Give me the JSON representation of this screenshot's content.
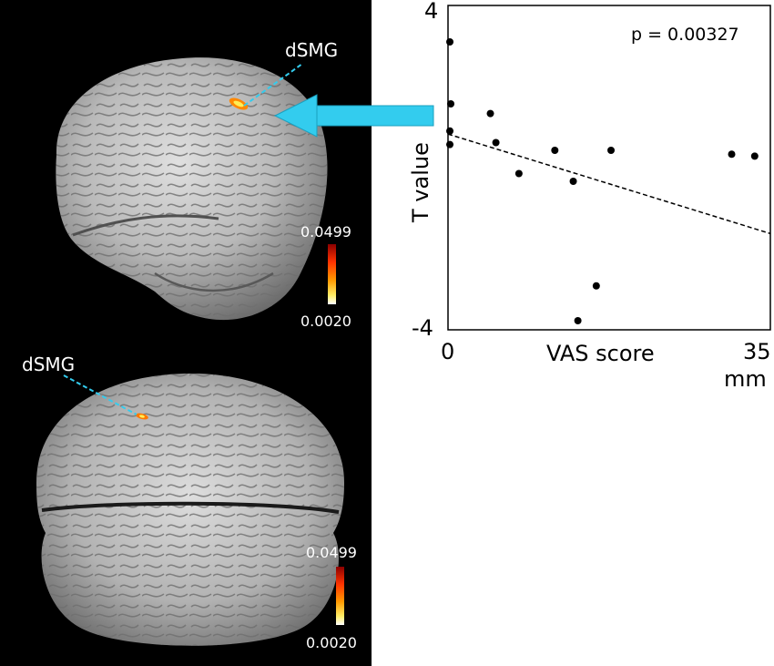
{
  "brain": {
    "lateral": {
      "roi_label": "dSMG",
      "colorbar_max": "0.0499",
      "colorbar_min": "0.0020"
    },
    "dorsal": {
      "roi_label": "dSMG",
      "colorbar_max": "0.0499",
      "colorbar_min": "0.0020"
    },
    "pointer_color": "#33ccee",
    "colorbar_colors": [
      "#8b0000",
      "#ff3300",
      "#ff9900",
      "#ffee66",
      "#ffffff"
    ]
  },
  "chart_data": {
    "type": "scatter",
    "title": "",
    "xlabel": "VAS score",
    "x_unit": "mm",
    "ylabel": "T value",
    "xlim": [
      0,
      35
    ],
    "ylim": [
      -4,
      4
    ],
    "x_ticks": [
      "0",
      "35"
    ],
    "y_ticks": [
      "4",
      "-4"
    ],
    "annotation": "p = 0.00327",
    "grid": false,
    "points": [
      {
        "x": 0.2,
        "y": 3.2
      },
      {
        "x": 0.3,
        "y": 1.6
      },
      {
        "x": 0.2,
        "y": 0.9
      },
      {
        "x": 0.2,
        "y": 0.55
      },
      {
        "x": 4.6,
        "y": 1.35
      },
      {
        "x": 5.2,
        "y": 0.6
      },
      {
        "x": 7.7,
        "y": -0.2
      },
      {
        "x": 11.6,
        "y": 0.4
      },
      {
        "x": 13.6,
        "y": -0.4
      },
      {
        "x": 16.1,
        "y": -3.1
      },
      {
        "x": 17.7,
        "y": 0.4
      },
      {
        "x": 14.1,
        "y": -4.0
      },
      {
        "x": 30.8,
        "y": 0.3
      },
      {
        "x": 33.3,
        "y": 0.25
      }
    ],
    "trendline": {
      "x": [
        0,
        35
      ],
      "y": [
        0.82,
        -1.75
      ],
      "style": "dashed"
    }
  }
}
